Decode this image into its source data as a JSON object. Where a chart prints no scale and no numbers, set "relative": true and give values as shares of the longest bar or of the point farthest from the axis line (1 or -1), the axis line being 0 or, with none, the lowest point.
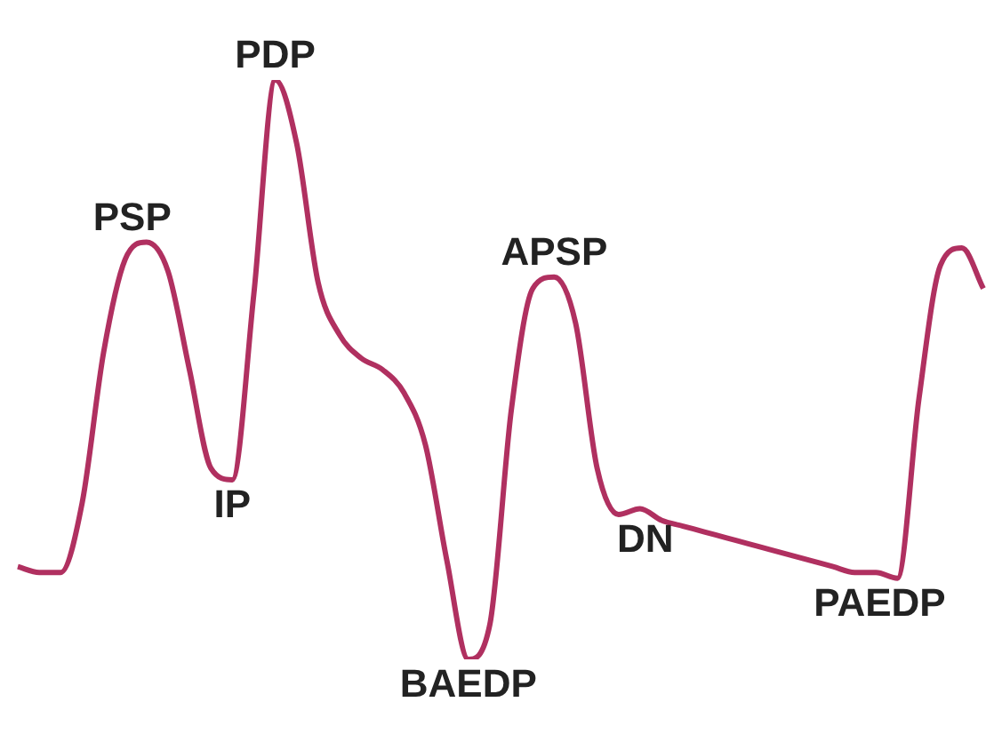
{
  "chart_data": {
    "type": "line",
    "relative": true,
    "color": "#b03060",
    "marker": "none",
    "legend": false,
    "categories": [
      null,
      null,
      null,
      null,
      null,
      null,
      null,
      null,
      null,
      null,
      null,
      null,
      null,
      null,
      null,
      null,
      null,
      null,
      null,
      null,
      null,
      null,
      null,
      null,
      null,
      null,
      null,
      null,
      null,
      null,
      null,
      null,
      null,
      null,
      null,
      null,
      null,
      null,
      null,
      null,
      null,
      null,
      null,
      null,
      null,
      null
    ],
    "values": [
      0.16,
      0.15,
      0.15,
      0.27,
      0.53,
      0.69,
      0.72,
      0.67,
      0.5,
      0.33,
      0.31,
      0.63,
      1,
      0.89,
      0.65,
      0.56,
      0.52,
      0.5,
      0.46,
      0.37,
      0.17,
      0,
      0.06,
      0.43,
      0.64,
      0.66,
      0.58,
      0.33,
      0.25,
      0.26,
      0.24,
      0.23,
      0.22,
      0.21,
      0.2,
      0.19,
      0.18,
      0.17,
      0.16,
      0.15,
      0.15,
      0.14,
      0.45,
      0.68,
      0.71,
      0.64
    ],
    "annotations": [
      {
        "text": "PSP",
        "y": 0.72
      },
      {
        "text": "PDP",
        "y": 1
      },
      {
        "text": "IP",
        "y": 0.31
      },
      {
        "text": "APSP",
        "y": 0.66
      },
      {
        "text": "BAEDP",
        "y": 0
      },
      {
        "text": "DN",
        "y": 0.25
      },
      {
        "text": "PAEDP",
        "y": 0.14
      }
    ]
  }
}
